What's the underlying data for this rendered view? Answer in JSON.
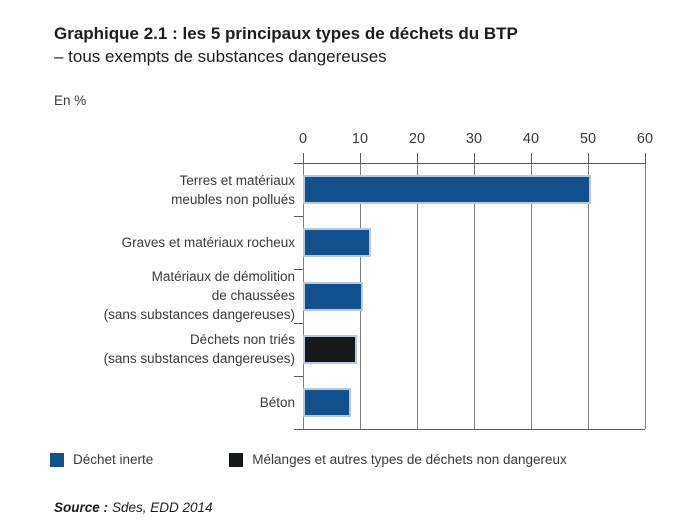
{
  "header": {
    "title_line1": "Graphique 2.1 : les 5 principaux types de déchets du BTP",
    "title_line2": "– tous exempts de substances dangereuses",
    "unit_label": "En %"
  },
  "chart_data": {
    "type": "bar",
    "orientation": "horizontal",
    "title": "Graphique 2.1 : les 5 principaux types de déchets du BTP – tous exempts de substances dangereuses",
    "xlabel": "En %",
    "ylabel": "",
    "xlim": [
      0,
      60
    ],
    "xticks": [
      0,
      10,
      20,
      30,
      40,
      50,
      60
    ],
    "grid": true,
    "categories": [
      "Terres et matériaux\nmeubles non pollués",
      "Graves et matériaux rocheux",
      "Matériaux de démolition\nde chaussées\n(sans substances dangereuses)",
      "Déchets non triés\n(sans substances dangereuses)",
      "Béton"
    ],
    "values": [
      50.5,
      12,
      10.5,
      9.5,
      8.5
    ],
    "bar_series": [
      "Déchet inerte",
      "Déchet inerte",
      "Déchet inerte",
      "Mélanges et autres types de déchets non dangereux",
      "Déchet inerte"
    ],
    "bar_colors": [
      "#11518E",
      "#11518E",
      "#11518E",
      "#15181B",
      "#11518E"
    ],
    "legend_position": "bottom"
  },
  "legend": {
    "items": [
      {
        "label": "Déchet inerte",
        "color": "#11518E"
      },
      {
        "label": "Mélanges et autres types de déchets non dangereux",
        "color": "#15181B"
      }
    ]
  },
  "source": {
    "label": "Source :",
    "value": "Sdes, EDD 2014"
  },
  "colors": {
    "bar_blue": "#11518E",
    "bar_black": "#15181B",
    "bar_border": "#BCC7DE",
    "grid_line": "#7F7F7F",
    "axis_line": "#5A5A5A",
    "text": "#3A3A39",
    "title_text": "#1D1D1B",
    "background": "#FFFFFF"
  }
}
